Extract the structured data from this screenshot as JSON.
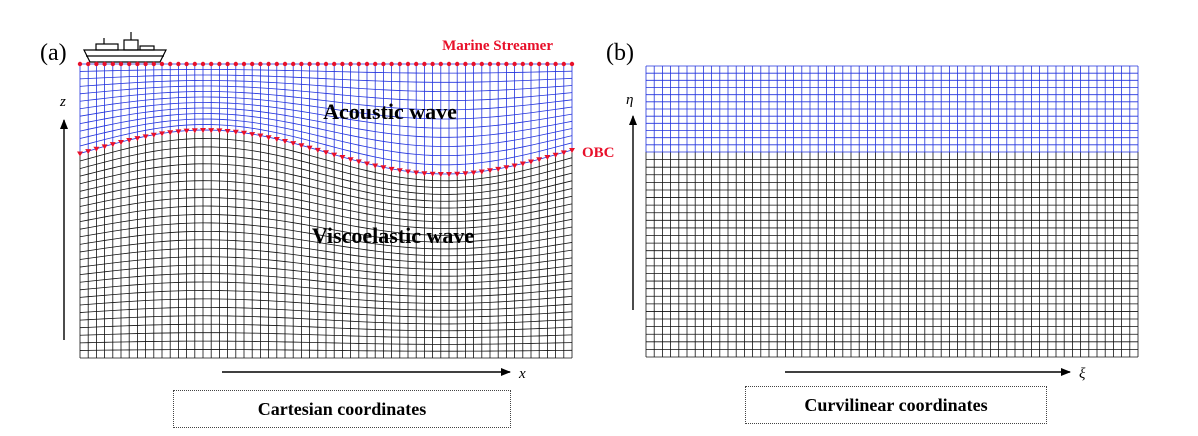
{
  "panel_a": {
    "label": "(a)",
    "streamer_label": "Marine Streamer",
    "obc_label": "OBC",
    "upper_layer_label": "Acoustic wave",
    "lower_layer_label": "Viscoelastic wave",
    "axis_vertical": "z",
    "axis_horizontal": "x",
    "caption": "Cartesian coordinates",
    "ship_icon": "ship-icon"
  },
  "panel_b": {
    "label": "(b)",
    "axis_vertical": "η",
    "axis_horizontal": "ξ",
    "caption": "Curvilinear coordinates"
  },
  "colors": {
    "acoustic_grid": "#2233dd",
    "elastic_grid": "#111111",
    "marker": "#e8102a",
    "text_red": "#e8102a"
  }
}
